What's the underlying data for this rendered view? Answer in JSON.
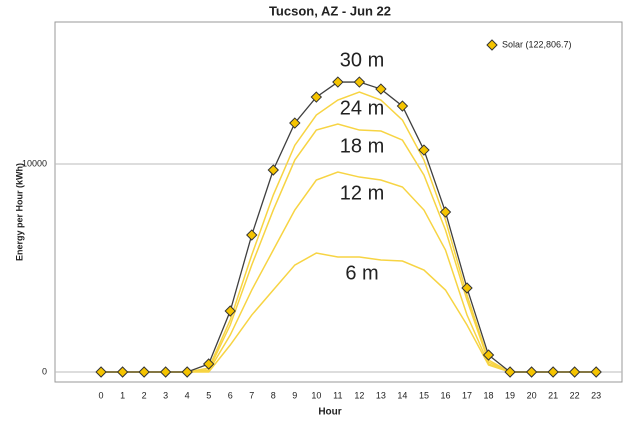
{
  "chart_data": {
    "type": "line",
    "title": "Tucson, AZ - Jun 22",
    "x_label": "Hour",
    "y_label": "Energy per Hour (kWh)",
    "x": [
      0,
      1,
      2,
      3,
      4,
      5,
      6,
      7,
      8,
      9,
      10,
      11,
      12,
      13,
      14,
      15,
      16,
      17,
      18,
      19,
      20,
      21,
      22,
      23
    ],
    "xlim": [
      -2.14,
      24.2
    ],
    "xticks": [
      0,
      1,
      2,
      3,
      4,
      5,
      6,
      7,
      8,
      9,
      10,
      11,
      12,
      13,
      14,
      15,
      16,
      17,
      18,
      19,
      20,
      21,
      22,
      23
    ],
    "ylim": [
      -480,
      16830
    ],
    "yticks": [
      0,
      10000
    ],
    "grid": true,
    "legend": "upper right",
    "series": [
      {
        "name": "Solar (122,806.7)",
        "label": "30 m",
        "color": "#3f3f3f",
        "marker_color": "#f5c400",
        "values": [
          0,
          0,
          0,
          0,
          0,
          385,
          2933,
          6587,
          9712,
          11971,
          13221,
          13942,
          13942,
          13606,
          12788,
          10673,
          7692,
          4038,
          817,
          0,
          0,
          0,
          0,
          0
        ]
      },
      {
        "label": "24 m",
        "color": "#f7d443",
        "values": [
          0,
          0,
          0,
          0,
          0,
          190,
          2500,
          5625,
          8510,
          10900,
          12356,
          13077,
          13462,
          13077,
          12115,
          10192,
          7308,
          3700,
          577,
          0,
          0,
          0,
          0,
          0
        ]
      },
      {
        "label": "18 m",
        "color": "#f7d443",
        "values": [
          0,
          0,
          0,
          0,
          0,
          96,
          2260,
          5144,
          7788,
          10192,
          11635,
          11923,
          11635,
          11587,
          11154,
          9471,
          6827,
          3462,
          481,
          0,
          0,
          0,
          0,
          0
        ]
      },
      {
        "label": "12 m",
        "color": "#f7d443",
        "values": [
          0,
          0,
          0,
          0,
          0,
          48,
          1779,
          3942,
          5865,
          7788,
          9231,
          9615,
          9375,
          9231,
          8894,
          7788,
          5865,
          2740,
          385,
          0,
          0,
          0,
          0,
          0
        ]
      },
      {
        "label": "6 m",
        "color": "#f7d443",
        "values": [
          0,
          0,
          0,
          0,
          0,
          0,
          1298,
          2740,
          3942,
          5144,
          5721,
          5529,
          5529,
          5385,
          5337,
          4904,
          3942,
          2260,
          337,
          0,
          0,
          0,
          0,
          0
        ]
      }
    ]
  }
}
